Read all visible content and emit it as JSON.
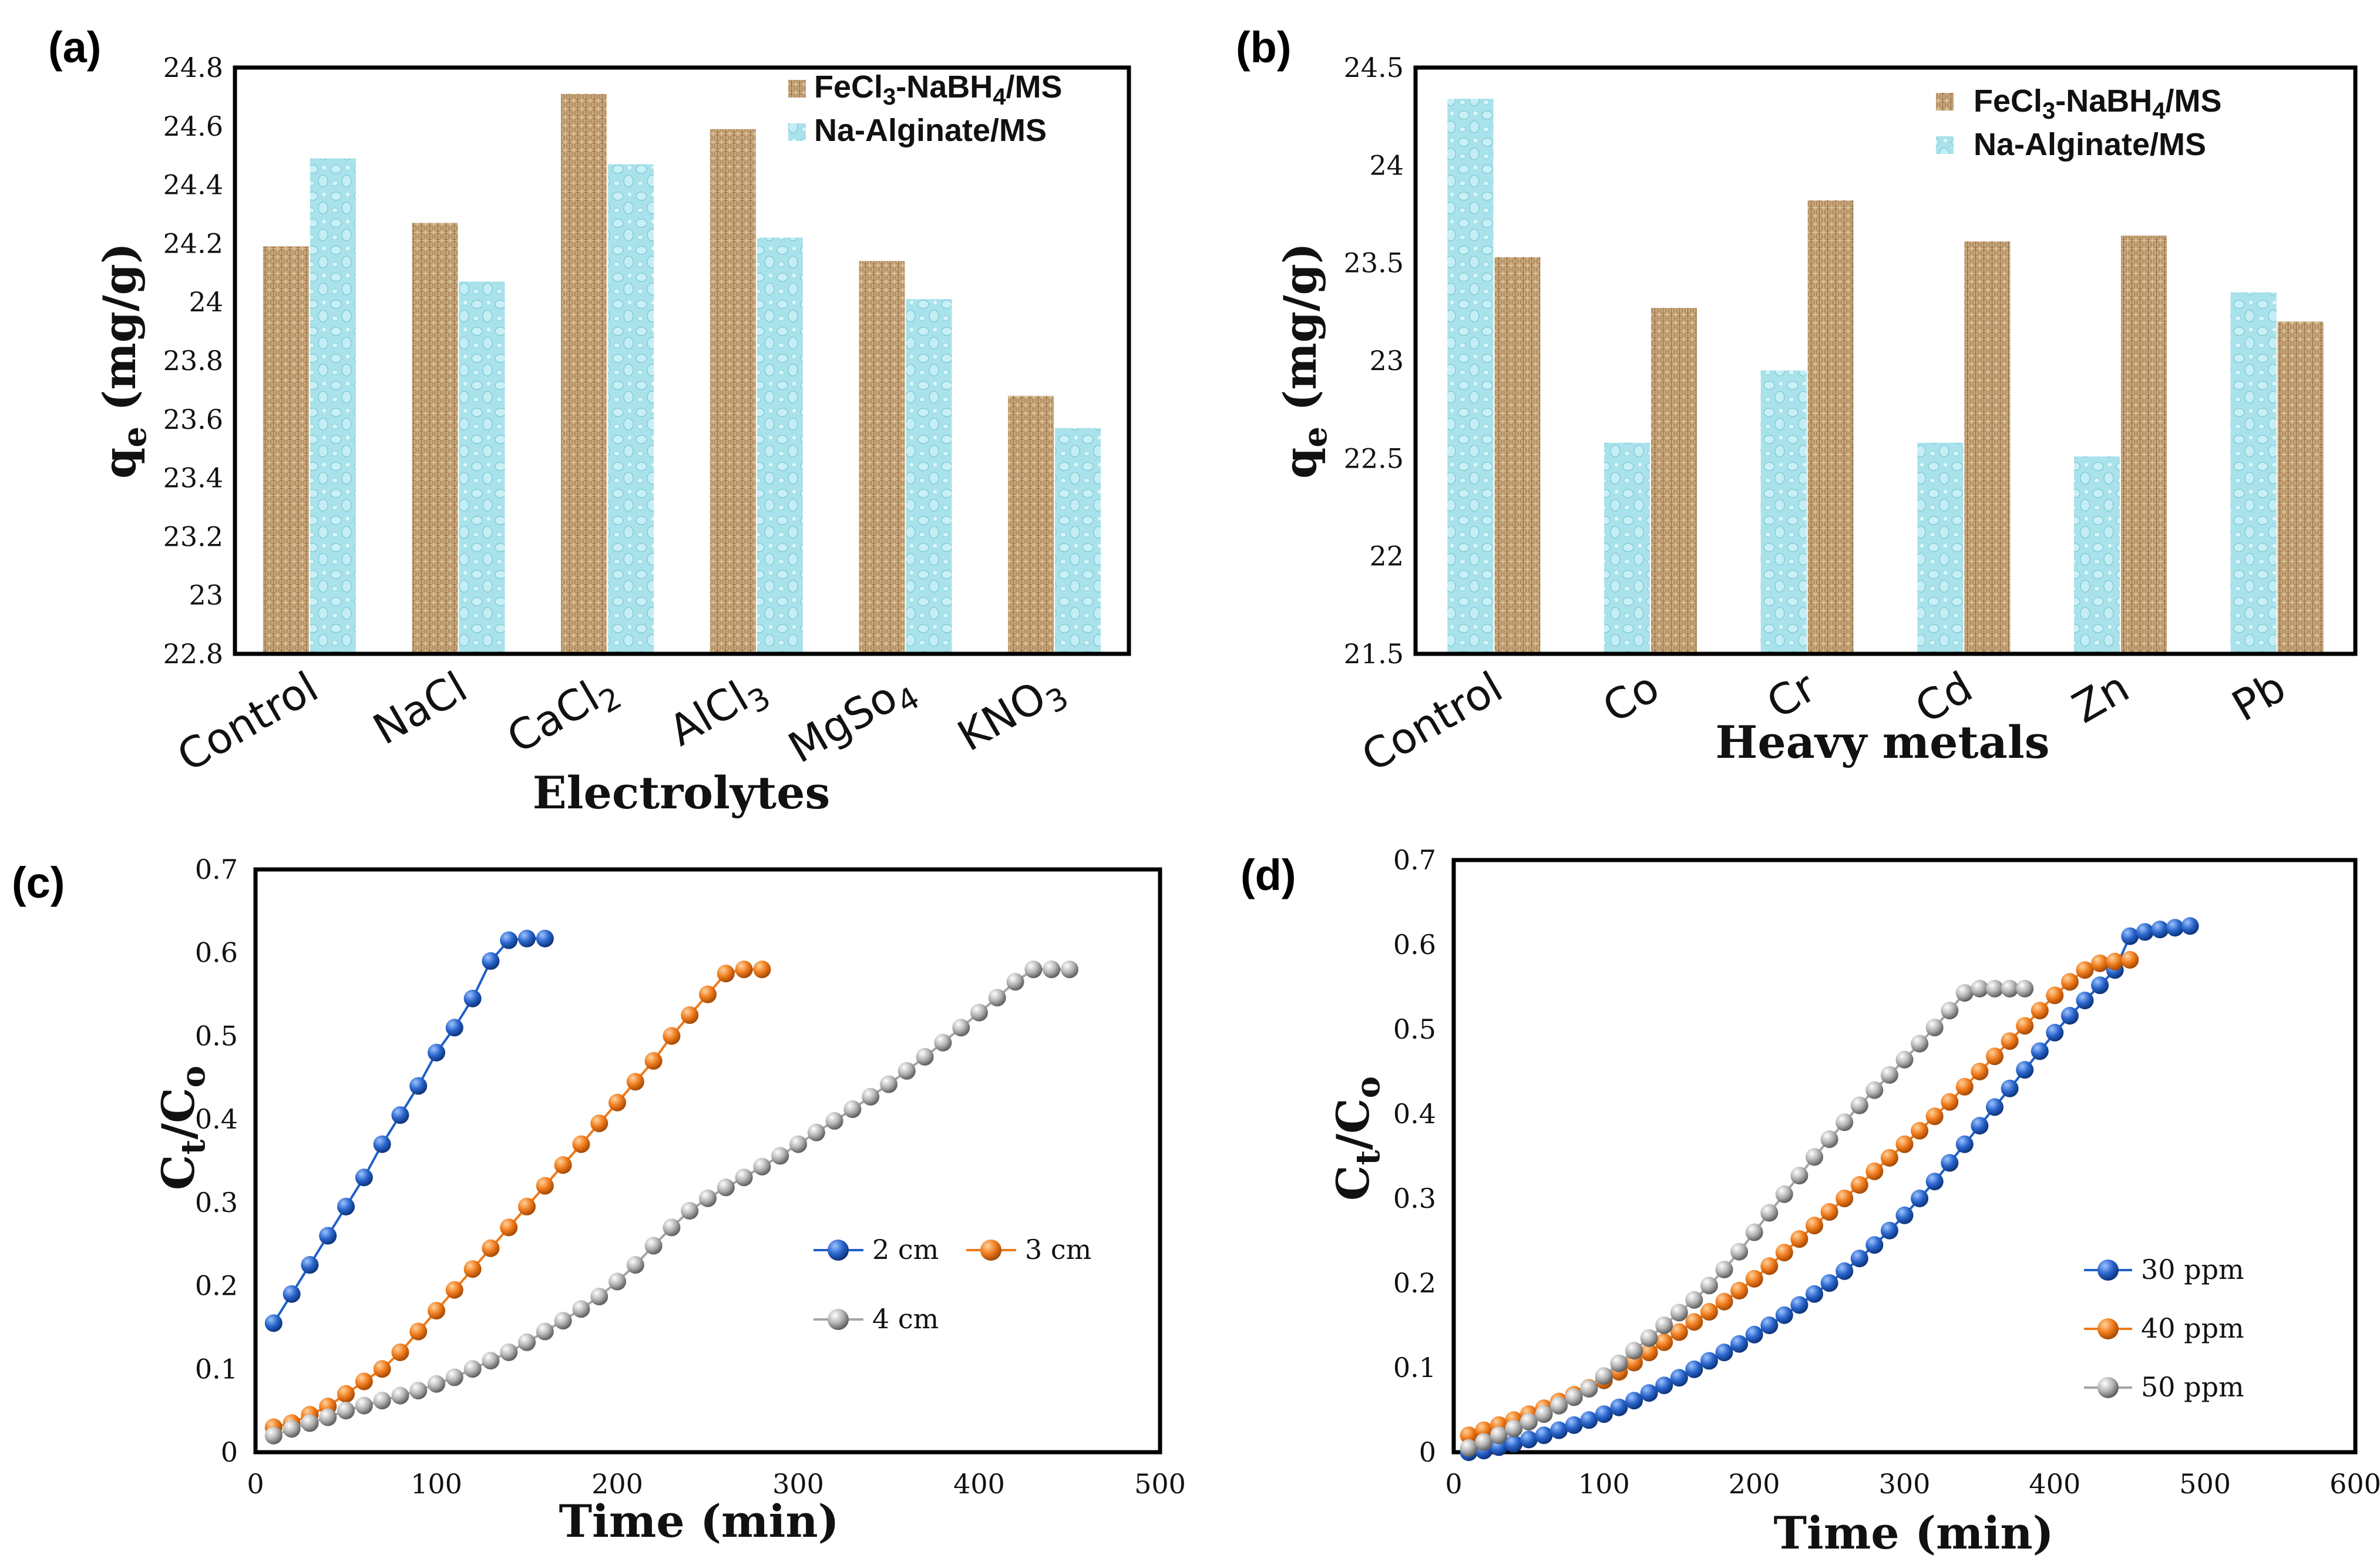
{
  "colors": {
    "fecl3_bar": "#c8a77c",
    "fecl3_bar_dark": "#7a5a36",
    "alginate_bar": "#a6e1ea",
    "alginate_bar_dark": "#6cbccb",
    "s2cm": "#1f5fc8",
    "s3cm": "#ef7a1a",
    "s4cm": "#a5a5a5",
    "s30": "#1f5fc8",
    "s40": "#ef7a1a",
    "s50": "#a5a5a5"
  },
  "chart_data": [
    {
      "panel": "(a)",
      "type": "bar",
      "xlabel": "Electrolytes",
      "ylabel": {
        "main": "q",
        "sub": "e",
        "unit": " (mg/g)"
      },
      "ylim": [
        22.8,
        24.8
      ],
      "yticks": [
        "22.8",
        "23",
        "23.2",
        "23.4",
        "23.6",
        "23.8",
        "24",
        "24.2",
        "24.4",
        "24.6",
        "24.8"
      ],
      "categories": [
        {
          "main": "Control",
          "sub": ""
        },
        {
          "main": "NaCl",
          "sub": ""
        },
        {
          "main": "CaCl",
          "sub": "2"
        },
        {
          "main": "AlCl",
          "sub": "3"
        },
        {
          "main": "MgSo",
          "sub": "4"
        },
        {
          "main": "KNO",
          "sub": "3"
        }
      ],
      "series": [
        {
          "name": "FeCl3-NaBH4/MS",
          "label_parts": [
            "FeCl",
            "3",
            "-NaBH",
            "4",
            "/MS"
          ],
          "values": [
            24.19,
            24.27,
            24.71,
            24.59,
            24.14,
            23.68
          ]
        },
        {
          "name": "Na-Alginate/MS",
          "label_parts": [
            "Na-Alginate/MS"
          ],
          "values": [
            24.49,
            24.07,
            24.47,
            24.22,
            24.01,
            23.57
          ]
        }
      ]
    },
    {
      "panel": "(b)",
      "type": "bar",
      "xlabel": "Heavy metals",
      "ylabel": {
        "main": "q",
        "sub": "e",
        "unit": " (mg/g)"
      },
      "ylim": [
        21.5,
        24.5
      ],
      "yticks": [
        "21.5",
        "22",
        "22.5",
        "23",
        "23.5",
        "24",
        "24.5"
      ],
      "categories": [
        {
          "main": "Control",
          "sub": ""
        },
        {
          "main": "Co",
          "sub": ""
        },
        {
          "main": "Cr",
          "sub": ""
        },
        {
          "main": "Cd",
          "sub": ""
        },
        {
          "main": "Zn",
          "sub": ""
        },
        {
          "main": "Pb",
          "sub": ""
        }
      ],
      "series": [
        {
          "name": "FeCl3-NaBH4/MS",
          "label_parts": [
            "FeCl",
            "3",
            "-NaBH",
            "4",
            "/MS"
          ],
          "values": [
            23.53,
            23.27,
            23.82,
            23.61,
            23.64,
            23.2
          ]
        },
        {
          "name": "Na-Alginate/MS",
          "label_parts": [
            "Na-Alginate/MS"
          ],
          "values": [
            24.34,
            22.58,
            22.95,
            22.58,
            22.51,
            23.35
          ]
        }
      ]
    },
    {
      "panel": "(c)",
      "type": "line",
      "xlabel": "Time (min)",
      "ylabel": {
        "main": "C",
        "sub": "t",
        "unit": "/C",
        "sub2": "o"
      },
      "xlim": [
        0,
        500
      ],
      "ylim": [
        0,
        0.7
      ],
      "xticks": [
        "0",
        "100",
        "200",
        "300",
        "400",
        "500"
      ],
      "yticks": [
        "0",
        "0.1",
        "0.2",
        "0.3",
        "0.4",
        "0.5",
        "0.6",
        "0.7"
      ],
      "series": [
        {
          "name": "2 cm",
          "colorKey": "s2cm",
          "x": [
            10,
            20,
            30,
            40,
            50,
            60,
            70,
            80,
            90,
            100,
            110,
            120,
            130,
            140,
            150,
            160
          ],
          "y": [
            0.155,
            0.19,
            0.225,
            0.26,
            0.295,
            0.33,
            0.37,
            0.405,
            0.44,
            0.48,
            0.51,
            0.545,
            0.59,
            0.615,
            0.617,
            0.617
          ]
        },
        {
          "name": "3 cm",
          "colorKey": "s3cm",
          "x": [
            10,
            20,
            30,
            40,
            50,
            60,
            70,
            80,
            90,
            100,
            110,
            120,
            130,
            140,
            150,
            160,
            170,
            180,
            190,
            200,
            210,
            220,
            230,
            240,
            250,
            260,
            270,
            280
          ],
          "y": [
            0.03,
            0.035,
            0.045,
            0.055,
            0.07,
            0.085,
            0.1,
            0.12,
            0.145,
            0.17,
            0.195,
            0.22,
            0.245,
            0.27,
            0.295,
            0.32,
            0.345,
            0.37,
            0.395,
            0.42,
            0.445,
            0.47,
            0.5,
            0.525,
            0.55,
            0.575,
            0.58,
            0.58
          ]
        },
        {
          "name": "4 cm",
          "colorKey": "s4cm",
          "x": [
            10,
            20,
            30,
            40,
            50,
            60,
            70,
            80,
            90,
            100,
            110,
            120,
            130,
            140,
            150,
            160,
            170,
            180,
            190,
            200,
            210,
            220,
            230,
            240,
            250,
            260,
            270,
            280,
            290,
            300,
            310,
            320,
            330,
            340,
            350,
            360,
            370,
            380,
            390,
            400,
            410,
            420,
            430,
            440,
            450
          ],
          "y": [
            0.02,
            0.028,
            0.035,
            0.042,
            0.05,
            0.056,
            0.062,
            0.068,
            0.074,
            0.082,
            0.09,
            0.1,
            0.11,
            0.12,
            0.132,
            0.145,
            0.158,
            0.172,
            0.187,
            0.205,
            0.225,
            0.248,
            0.27,
            0.29,
            0.305,
            0.318,
            0.33,
            0.343,
            0.356,
            0.37,
            0.384,
            0.398,
            0.412,
            0.427,
            0.442,
            0.458,
            0.475,
            0.492,
            0.51,
            0.528,
            0.546,
            0.565,
            0.58,
            0.58,
            0.58
          ]
        }
      ]
    },
    {
      "panel": "(d)",
      "type": "line",
      "xlabel": "Time (min)",
      "ylabel": {
        "main": "C",
        "sub": "t",
        "unit": "/C",
        "sub2": "o"
      },
      "xlim": [
        0,
        600
      ],
      "ylim": [
        0,
        0.7
      ],
      "xticks": [
        "0",
        "100",
        "200",
        "300",
        "400",
        "500",
        "600"
      ],
      "yticks": [
        "0",
        "0.1",
        "0.2",
        "0.3",
        "0.4",
        "0.5",
        "0.6",
        "0.7"
      ],
      "series": [
        {
          "name": "30 ppm",
          "colorKey": "s30",
          "x": [
            10,
            20,
            30,
            40,
            50,
            60,
            70,
            80,
            90,
            100,
            110,
            120,
            130,
            140,
            150,
            160,
            170,
            180,
            190,
            200,
            210,
            220,
            230,
            240,
            250,
            260,
            270,
            280,
            290,
            300,
            310,
            320,
            330,
            340,
            350,
            360,
            370,
            380,
            390,
            400,
            410,
            420,
            430,
            440,
            450,
            460,
            470,
            480,
            490
          ],
          "y": [
            0.0,
            0.002,
            0.006,
            0.01,
            0.015,
            0.02,
            0.026,
            0.032,
            0.038,
            0.045,
            0.053,
            0.061,
            0.07,
            0.079,
            0.088,
            0.098,
            0.108,
            0.118,
            0.128,
            0.139,
            0.15,
            0.162,
            0.174,
            0.187,
            0.2,
            0.214,
            0.229,
            0.245,
            0.262,
            0.28,
            0.3,
            0.32,
            0.342,
            0.364,
            0.386,
            0.408,
            0.43,
            0.452,
            0.474,
            0.496,
            0.516,
            0.534,
            0.552,
            0.57,
            0.61,
            0.615,
            0.618,
            0.62,
            0.622
          ]
        },
        {
          "name": "40 ppm",
          "colorKey": "s40",
          "x": [
            10,
            20,
            30,
            40,
            50,
            60,
            70,
            80,
            90,
            100,
            110,
            120,
            130,
            140,
            150,
            160,
            170,
            180,
            190,
            200,
            210,
            220,
            230,
            240,
            250,
            260,
            270,
            280,
            290,
            300,
            310,
            320,
            330,
            340,
            350,
            360,
            370,
            380,
            390,
            400,
            410,
            420,
            430,
            440,
            450
          ],
          "y": [
            0.02,
            0.026,
            0.032,
            0.038,
            0.045,
            0.052,
            0.06,
            0.068,
            0.076,
            0.085,
            0.095,
            0.106,
            0.118,
            0.13,
            0.142,
            0.154,
            0.166,
            0.178,
            0.191,
            0.205,
            0.22,
            0.236,
            0.252,
            0.268,
            0.284,
            0.3,
            0.316,
            0.332,
            0.348,
            0.364,
            0.38,
            0.397,
            0.414,
            0.432,
            0.45,
            0.468,
            0.486,
            0.504,
            0.522,
            0.54,
            0.556,
            0.57,
            0.578,
            0.58,
            0.582
          ]
        },
        {
          "name": "50 ppm",
          "colorKey": "s50",
          "x": [
            10,
            20,
            30,
            40,
            50,
            60,
            70,
            80,
            90,
            100,
            110,
            120,
            130,
            140,
            150,
            160,
            170,
            180,
            190,
            200,
            210,
            220,
            230,
            240,
            250,
            260,
            270,
            280,
            290,
            300,
            310,
            320,
            330,
            340,
            350,
            360,
            370,
            380
          ],
          "y": [
            0.005,
            0.012,
            0.02,
            0.028,
            0.036,
            0.045,
            0.055,
            0.065,
            0.075,
            0.09,
            0.105,
            0.12,
            0.135,
            0.15,
            0.165,
            0.18,
            0.197,
            0.216,
            0.237,
            0.26,
            0.283,
            0.305,
            0.327,
            0.349,
            0.37,
            0.39,
            0.41,
            0.428,
            0.446,
            0.464,
            0.483,
            0.502,
            0.522,
            0.543,
            0.548,
            0.548,
            0.548,
            0.548
          ]
        }
      ]
    }
  ]
}
